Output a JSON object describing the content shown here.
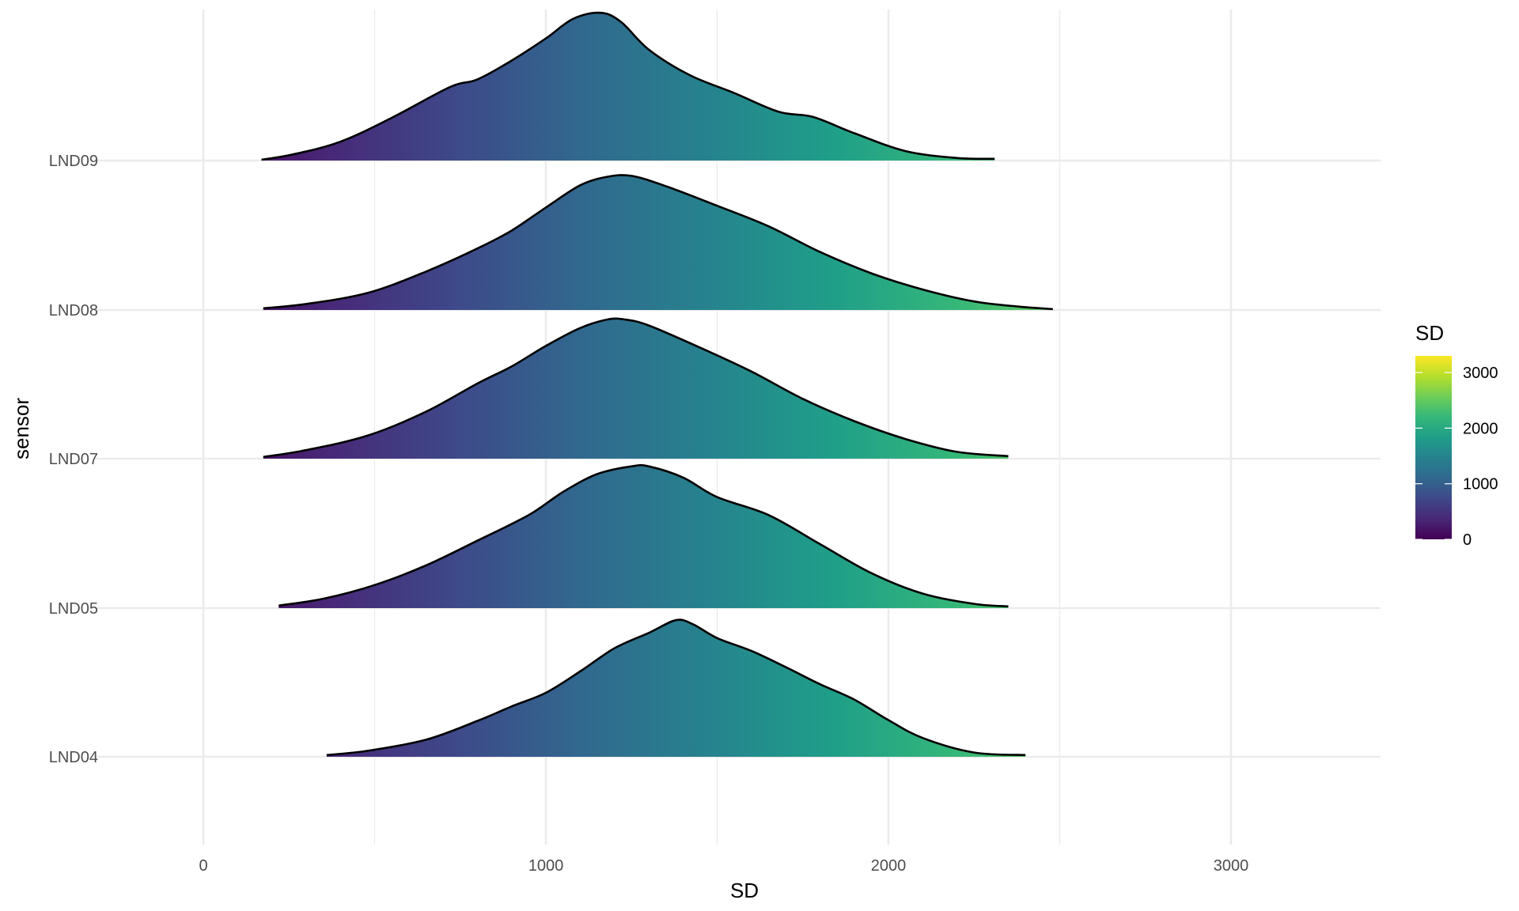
{
  "chart_data": {
    "type": "ridgeline",
    "xlabel": "SD",
    "ylabel": "sensor",
    "xlim": [
      -340,
      3440
    ],
    "x_ticks": [
      0,
      1000,
      2000,
      3000
    ],
    "x_tick_labels": [
      "0",
      "1000",
      "2000",
      "3000"
    ],
    "grid": true,
    "legend": {
      "title": "SD",
      "position": "right",
      "range": [
        0,
        3300
      ],
      "ticks": [
        0,
        1000,
        2000,
        3000
      ],
      "tick_labels": [
        "0",
        "1000",
        "2000",
        "3000"
      ],
      "colormap": "viridis"
    },
    "categories": [
      "LND09",
      "LND08",
      "LND07",
      "LND05",
      "LND04"
    ],
    "series": [
      {
        "name": "LND09",
        "x": [
          170,
          260,
          400,
          550,
          720,
          800,
          900,
          1000,
          1080,
          1160,
          1220,
          1300,
          1420,
          1550,
          1680,
          1780,
          1900,
          2050,
          2200,
          2310
        ],
        "density": [
          0.01,
          0.07,
          0.22,
          0.5,
          0.86,
          0.95,
          1.17,
          1.43,
          1.66,
          1.73,
          1.62,
          1.3,
          1.0,
          0.79,
          0.57,
          0.51,
          0.32,
          0.11,
          0.03,
          0.02
        ]
      },
      {
        "name": "LND08",
        "x": [
          175,
          300,
          480,
          650,
          800,
          900,
          1000,
          1100,
          1180,
          1250,
          1350,
          1500,
          1650,
          1800,
          1950,
          2100,
          2250,
          2380,
          2480
        ],
        "density": [
          0.02,
          0.07,
          0.2,
          0.45,
          0.72,
          0.93,
          1.2,
          1.46,
          1.56,
          1.57,
          1.45,
          1.22,
          0.98,
          0.68,
          0.43,
          0.24,
          0.1,
          0.04,
          0.01
        ]
      },
      {
        "name": "LND07",
        "x": [
          175,
          300,
          480,
          650,
          800,
          900,
          1000,
          1100,
          1180,
          1230,
          1300,
          1450,
          1600,
          1750,
          1900,
          2050,
          2200,
          2350
        ],
        "density": [
          0.02,
          0.1,
          0.27,
          0.55,
          0.88,
          1.08,
          1.32,
          1.53,
          1.63,
          1.63,
          1.56,
          1.3,
          1.02,
          0.7,
          0.44,
          0.23,
          0.08,
          0.03
        ]
      },
      {
        "name": "LND05",
        "x": [
          220,
          350,
          500,
          650,
          800,
          950,
          1050,
          1150,
          1250,
          1300,
          1400,
          1500,
          1650,
          1800,
          1950,
          2100,
          2250,
          2350
        ],
        "density": [
          0.03,
          0.11,
          0.27,
          0.5,
          0.79,
          1.09,
          1.36,
          1.57,
          1.66,
          1.66,
          1.53,
          1.3,
          1.09,
          0.75,
          0.41,
          0.17,
          0.05,
          0.02
        ]
      },
      {
        "name": "LND04",
        "x": [
          360,
          480,
          650,
          800,
          900,
          1000,
          1100,
          1200,
          1300,
          1380,
          1430,
          1500,
          1600,
          1700,
          1800,
          1900,
          2000,
          2100,
          2250,
          2400
        ],
        "density": [
          0.02,
          0.07,
          0.2,
          0.42,
          0.59,
          0.75,
          1.0,
          1.27,
          1.45,
          1.6,
          1.55,
          1.39,
          1.24,
          1.05,
          0.85,
          0.67,
          0.43,
          0.22,
          0.05,
          0.02
        ]
      }
    ]
  }
}
